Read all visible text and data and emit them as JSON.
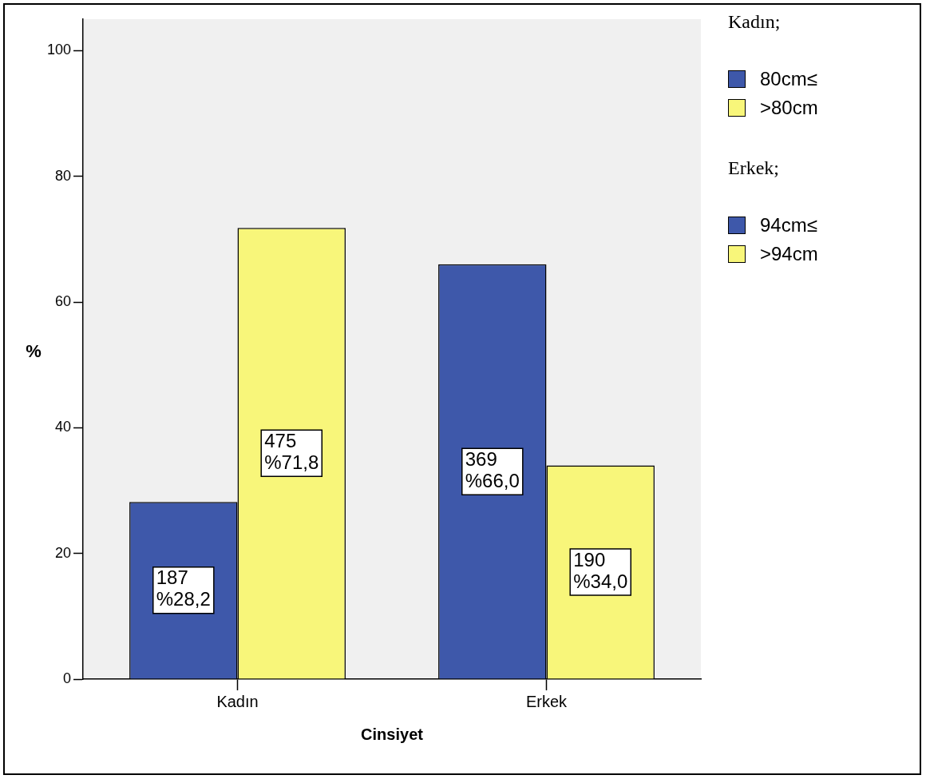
{
  "chart_data": {
    "type": "bar",
    "xlabel": "Cinsiyet",
    "ylabel": "%",
    "categories": [
      "Kadın",
      "Erkek"
    ],
    "series": [
      {
        "name": "80cm≤",
        "color": "#3e58aa",
        "values": [
          28.2,
          null
        ],
        "value_labels": [
          "187\n%28,2",
          null
        ]
      },
      {
        "name": ">80cm",
        "color": "#f8f67a",
        "values": [
          71.8,
          null
        ],
        "value_labels": [
          "475\n%71,8",
          null
        ]
      },
      {
        "name": "94cm≤",
        "color": "#3e58aa",
        "values": [
          null,
          66.0
        ],
        "value_labels": [
          null,
          "369\n%66,0"
        ]
      },
      {
        "name": ">94cm",
        "color": "#f8f67a",
        "values": [
          null,
          34.0
        ],
        "value_labels": [
          null,
          "190\n%34,0"
        ]
      }
    ],
    "ylim": [
      0,
      105
    ],
    "yticks": [
      0,
      20,
      40,
      60,
      80,
      100
    ],
    "grid": false,
    "legend": "right",
    "legend_title": "Kadın;",
    "annotations": [
      "Erkek;"
    ]
  }
}
